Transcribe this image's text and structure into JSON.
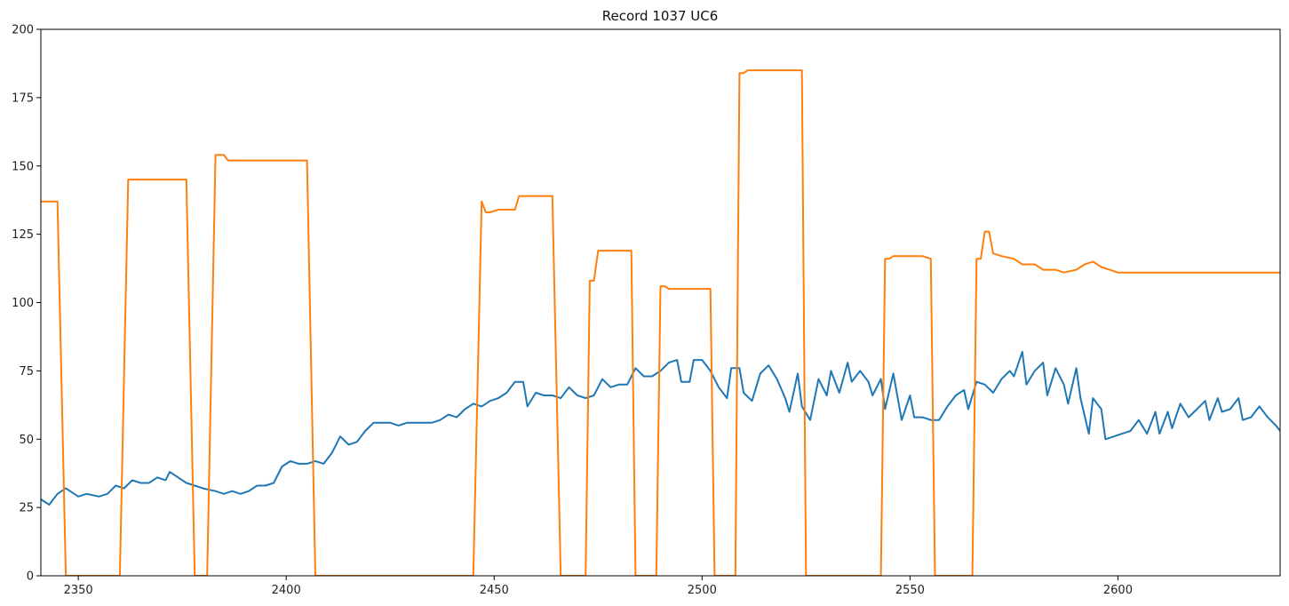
{
  "chart_data": {
    "type": "line",
    "title": "Record 1037 UC6",
    "xlabel": "",
    "ylabel": "",
    "xlim": [
      2341,
      2639
    ],
    "ylim": [
      0,
      200
    ],
    "x_ticks": [
      2350,
      2400,
      2450,
      2500,
      2550,
      2600
    ],
    "y_ticks": [
      0,
      25,
      50,
      75,
      100,
      125,
      150,
      175,
      200
    ],
    "grid": false,
    "legend": "none",
    "series": [
      {
        "color": "#1f77b4",
        "points": [
          [
            2341,
            28
          ],
          [
            2343,
            26
          ],
          [
            2345,
            30
          ],
          [
            2347,
            32
          ],
          [
            2350,
            29
          ],
          [
            2352,
            30
          ],
          [
            2355,
            29
          ],
          [
            2357,
            30
          ],
          [
            2359,
            33
          ],
          [
            2361,
            32
          ],
          [
            2363,
            35
          ],
          [
            2365,
            34
          ],
          [
            2367,
            34
          ],
          [
            2369,
            36
          ],
          [
            2371,
            35
          ],
          [
            2372,
            38
          ],
          [
            2374,
            36
          ],
          [
            2376,
            34
          ],
          [
            2378,
            33
          ],
          [
            2380,
            32
          ],
          [
            2383,
            31
          ],
          [
            2385,
            30
          ],
          [
            2387,
            31
          ],
          [
            2389,
            30
          ],
          [
            2391,
            31
          ],
          [
            2393,
            33
          ],
          [
            2395,
            33
          ],
          [
            2397,
            34
          ],
          [
            2399,
            40
          ],
          [
            2401,
            42
          ],
          [
            2403,
            41
          ],
          [
            2405,
            41
          ],
          [
            2407,
            42
          ],
          [
            2409,
            41
          ],
          [
            2411,
            45
          ],
          [
            2413,
            51
          ],
          [
            2415,
            48
          ],
          [
            2417,
            49
          ],
          [
            2419,
            53
          ],
          [
            2421,
            56
          ],
          [
            2423,
            56
          ],
          [
            2425,
            56
          ],
          [
            2427,
            55
          ],
          [
            2429,
            56
          ],
          [
            2431,
            56
          ],
          [
            2433,
            56
          ],
          [
            2435,
            56
          ],
          [
            2437,
            57
          ],
          [
            2439,
            59
          ],
          [
            2441,
            58
          ],
          [
            2443,
            61
          ],
          [
            2445,
            63
          ],
          [
            2447,
            62
          ],
          [
            2449,
            64
          ],
          [
            2451,
            65
          ],
          [
            2453,
            67
          ],
          [
            2455,
            71
          ],
          [
            2457,
            71
          ],
          [
            2458,
            62
          ],
          [
            2460,
            67
          ],
          [
            2462,
            66
          ],
          [
            2464,
            66
          ],
          [
            2466,
            65
          ],
          [
            2468,
            69
          ],
          [
            2470,
            66
          ],
          [
            2472,
            65
          ],
          [
            2474,
            66
          ],
          [
            2476,
            72
          ],
          [
            2478,
            69
          ],
          [
            2480,
            70
          ],
          [
            2482,
            70
          ],
          [
            2484,
            76
          ],
          [
            2486,
            73
          ],
          [
            2488,
            73
          ],
          [
            2490,
            75
          ],
          [
            2492,
            78
          ],
          [
            2494,
            79
          ],
          [
            2495,
            71
          ],
          [
            2497,
            71
          ],
          [
            2498,
            79
          ],
          [
            2500,
            79
          ],
          [
            2502,
            75
          ],
          [
            2504,
            69
          ],
          [
            2506,
            65
          ],
          [
            2507,
            76
          ],
          [
            2509,
            76
          ],
          [
            2510,
            67
          ],
          [
            2512,
            64
          ],
          [
            2514,
            74
          ],
          [
            2516,
            77
          ],
          [
            2518,
            72
          ],
          [
            2520,
            65
          ],
          [
            2521,
            60
          ],
          [
            2523,
            74
          ],
          [
            2524,
            62
          ],
          [
            2526,
            57
          ],
          [
            2528,
            72
          ],
          [
            2530,
            66
          ],
          [
            2531,
            75
          ],
          [
            2533,
            67
          ],
          [
            2535,
            78
          ],
          [
            2536,
            71
          ],
          [
            2538,
            75
          ],
          [
            2540,
            71
          ],
          [
            2541,
            66
          ],
          [
            2543,
            72
          ],
          [
            2544,
            61
          ],
          [
            2546,
            74
          ],
          [
            2548,
            57
          ],
          [
            2550,
            66
          ],
          [
            2551,
            58
          ],
          [
            2553,
            58
          ],
          [
            2555,
            57
          ],
          [
            2557,
            57
          ],
          [
            2559,
            62
          ],
          [
            2561,
            66
          ],
          [
            2563,
            68
          ],
          [
            2564,
            61
          ],
          [
            2566,
            71
          ],
          [
            2568,
            70
          ],
          [
            2570,
            67
          ],
          [
            2572,
            72
          ],
          [
            2574,
            75
          ],
          [
            2575,
            73
          ],
          [
            2577,
            82
          ],
          [
            2578,
            70
          ],
          [
            2580,
            75
          ],
          [
            2582,
            78
          ],
          [
            2583,
            66
          ],
          [
            2585,
            76
          ],
          [
            2587,
            70
          ],
          [
            2588,
            63
          ],
          [
            2590,
            76
          ],
          [
            2591,
            65
          ],
          [
            2593,
            52
          ],
          [
            2594,
            65
          ],
          [
            2596,
            61
          ],
          [
            2597,
            50
          ],
          [
            2599,
            51
          ],
          [
            2601,
            52
          ],
          [
            2603,
            53
          ],
          [
            2605,
            57
          ],
          [
            2607,
            52
          ],
          [
            2609,
            60
          ],
          [
            2610,
            52
          ],
          [
            2612,
            60
          ],
          [
            2613,
            54
          ],
          [
            2615,
            63
          ],
          [
            2617,
            58
          ],
          [
            2619,
            61
          ],
          [
            2621,
            64
          ],
          [
            2622,
            57
          ],
          [
            2624,
            65
          ],
          [
            2625,
            60
          ],
          [
            2627,
            61
          ],
          [
            2629,
            65
          ],
          [
            2630,
            57
          ],
          [
            2632,
            58
          ],
          [
            2634,
            62
          ],
          [
            2636,
            58
          ],
          [
            2638,
            55
          ],
          [
            2639,
            53
          ]
        ]
      },
      {
        "color": "#ff7f0e",
        "points": [
          [
            2341,
            137
          ],
          [
            2345,
            137
          ],
          [
            2347,
            0
          ],
          [
            2360,
            0
          ],
          [
            2362,
            145
          ],
          [
            2370,
            145
          ],
          [
            2372,
            145
          ],
          [
            2376,
            145
          ],
          [
            2378,
            0
          ],
          [
            2381,
            0
          ],
          [
            2383,
            154
          ],
          [
            2385,
            154
          ],
          [
            2386,
            152
          ],
          [
            2392,
            152
          ],
          [
            2400,
            152
          ],
          [
            2405,
            152
          ],
          [
            2407,
            0
          ],
          [
            2445,
            0
          ],
          [
            2447,
            137
          ],
          [
            2448,
            133
          ],
          [
            2449,
            133
          ],
          [
            2451,
            134
          ],
          [
            2455,
            134
          ],
          [
            2456,
            139
          ],
          [
            2461,
            139
          ],
          [
            2464,
            139
          ],
          [
            2466,
            0
          ],
          [
            2472,
            0
          ],
          [
            2473,
            108
          ],
          [
            2474,
            108
          ],
          [
            2475,
            119
          ],
          [
            2477,
            119
          ],
          [
            2480,
            119
          ],
          [
            2483,
            119
          ],
          [
            2484,
            0
          ],
          [
            2489,
            0
          ],
          [
            2490,
            106
          ],
          [
            2491,
            106
          ],
          [
            2492,
            105
          ],
          [
            2495,
            105
          ],
          [
            2498,
            105
          ],
          [
            2502,
            105
          ],
          [
            2503,
            0
          ],
          [
            2508,
            0
          ],
          [
            2509,
            184
          ],
          [
            2510,
            184
          ],
          [
            2511,
            185
          ],
          [
            2520,
            185
          ],
          [
            2524,
            185
          ],
          [
            2525,
            0
          ],
          [
            2543,
            0
          ],
          [
            2544,
            116
          ],
          [
            2545,
            116
          ],
          [
            2546,
            117
          ],
          [
            2550,
            117
          ],
          [
            2553,
            117
          ],
          [
            2555,
            116
          ],
          [
            2556,
            0
          ],
          [
            2565,
            0
          ],
          [
            2566,
            116
          ],
          [
            2567,
            116
          ],
          [
            2568,
            126
          ],
          [
            2569,
            126
          ],
          [
            2570,
            118
          ],
          [
            2572,
            117
          ],
          [
            2575,
            116
          ],
          [
            2577,
            114
          ],
          [
            2580,
            114
          ],
          [
            2582,
            112
          ],
          [
            2585,
            112
          ],
          [
            2587,
            111
          ],
          [
            2590,
            112
          ],
          [
            2592,
            114
          ],
          [
            2594,
            115
          ],
          [
            2596,
            113
          ],
          [
            2598,
            112
          ],
          [
            2600,
            111
          ],
          [
            2603,
            111
          ],
          [
            2606,
            111
          ],
          [
            2609,
            111
          ],
          [
            2612,
            111
          ],
          [
            2615,
            111
          ],
          [
            2618,
            111
          ],
          [
            2621,
            111
          ],
          [
            2624,
            111
          ],
          [
            2627,
            111
          ],
          [
            2630,
            111
          ],
          [
            2633,
            111
          ],
          [
            2636,
            111
          ],
          [
            2639,
            111
          ]
        ]
      }
    ]
  }
}
